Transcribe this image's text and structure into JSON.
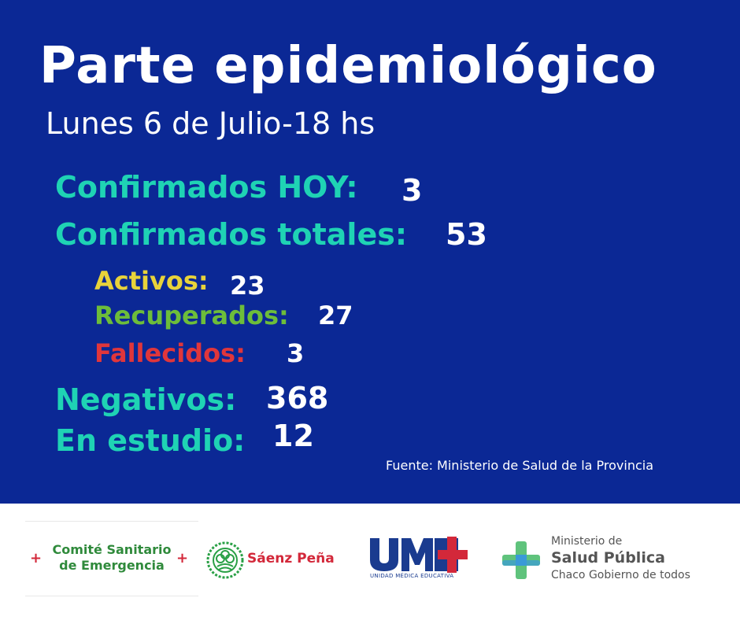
{
  "title": "Parte epidemiológico",
  "subtitle": "Lunes 6 de Julio-18 hs",
  "stats": {
    "hoy": {
      "label": "Confirmados HOY:",
      "value": "3"
    },
    "totales": {
      "label": "Confirmados totales:",
      "value": "53"
    },
    "activos": {
      "label": "Activos:",
      "value": "23"
    },
    "recuperados": {
      "label": "Recuperados:",
      "value": "27"
    },
    "fallecidos": {
      "label": "Fallecidos:",
      "value": "3"
    },
    "negativos": {
      "label": "Negativos:",
      "value": "368"
    },
    "estudio": {
      "label": "En estudio:",
      "value": "12"
    }
  },
  "source": "Fuente: Ministerio de Salud de la Provincia",
  "logos": {
    "comite": {
      "line1": "Comité Sanitario",
      "line2": "de Emergencia",
      "cross": "+"
    },
    "saenz_pena": "Sáenz Peña",
    "ume": {
      "mark": "UME",
      "sub": "UNIDAD MÉDICA EDUCATIVA"
    },
    "ministerio": {
      "line1": "Ministerio de",
      "line2": "Salud Pública",
      "line3": "Chaco Gobierno de todos"
    }
  },
  "colors": {
    "background": "#0b2895",
    "teal": "#1fd3b4",
    "yellow": "#e8d33a",
    "green": "#6dbd3a",
    "red": "#e0363b"
  }
}
